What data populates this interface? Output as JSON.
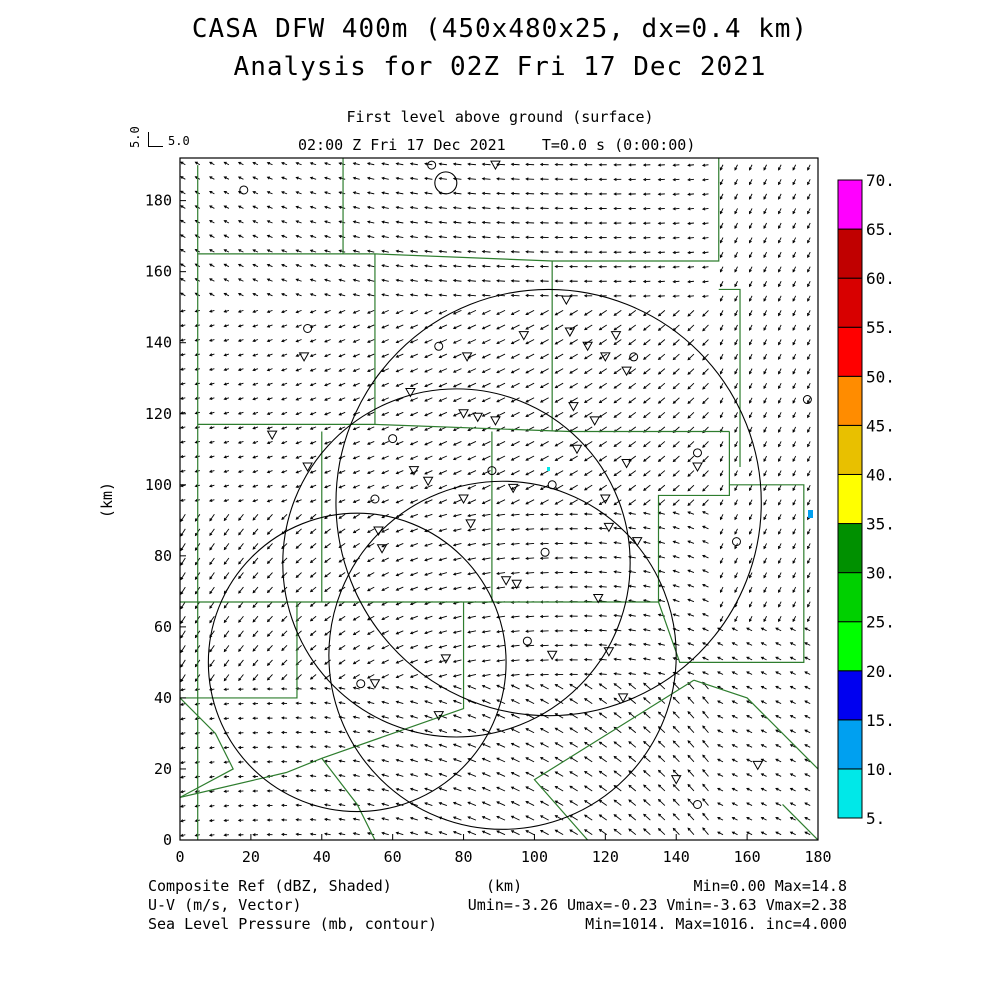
{
  "header": {
    "title_line1": "CASA DFW 400m (450x480x25, dx=0.4 km)",
    "title_line2": "Analysis for 02Z Fri 17 Dec 2021",
    "subtitle_line1": "First level above ground (surface)",
    "subtitle_line2": "02:00 Z Fri 17 Dec 2021    T=0.0 s (0:00:00)",
    "ref_vector_label": "5.0",
    "ref_vector_vertical_label": "5.0"
  },
  "footer": {
    "field1_name": "Composite Ref (dBZ, Shaded)",
    "field1_range": "Min=0.00 Max=14.8",
    "field2_name": "U-V (m/s, Vector)",
    "field2_range": "Umin=-3.26 Umax=-0.23 Vmin=-3.63 Vmax=2.38",
    "field3_name": "Sea Level Pressure (mb, contour)",
    "field3_range": "Min=1014. Max=1016. inc=4.000",
    "x_unit": "(km)"
  },
  "colors": {
    "county_lines": "#2e7d2e",
    "vectors": "#000000",
    "frame": "#000000"
  },
  "chart_data": {
    "type": "map",
    "xlabel": "(km)",
    "ylabel": "(km)",
    "xlim": [
      0,
      180
    ],
    "ylim": [
      0,
      192
    ],
    "xticks": [
      0,
      20,
      40,
      60,
      80,
      100,
      120,
      140,
      160,
      180
    ],
    "yticks": [
      0,
      20,
      40,
      60,
      80,
      100,
      120,
      140,
      160,
      180
    ],
    "colorbar": {
      "levels": [
        "5.",
        "10.",
        "15.",
        "20.",
        "25.",
        "30.",
        "35.",
        "40.",
        "45.",
        "50.",
        "55.",
        "60.",
        "65.",
        "70."
      ],
      "colors": [
        "#00e8e8",
        "#00a0f0",
        "#0000f0",
        "#00ff00",
        "#00d000",
        "#009000",
        "#ffff00",
        "#e8c000",
        "#ff8c00",
        "#ff0000",
        "#d80000",
        "#c00000",
        "#ff00ff"
      ]
    },
    "radar_rings": [
      {
        "cx": 104,
        "cy": 95,
        "r": 60
      },
      {
        "cx": 78,
        "cy": 78,
        "r": 49
      },
      {
        "cx": 91,
        "cy": 52,
        "r": 49
      },
      {
        "cx": 50,
        "cy": 50,
        "r": 42
      }
    ],
    "wind_field": {
      "u_range": [
        -3.26,
        -0.23
      ],
      "v_range": [
        -3.63,
        2.38
      ]
    },
    "station_markers_triangle": [
      [
        35,
        136
      ],
      [
        26,
        114
      ],
      [
        36,
        105
      ],
      [
        66,
        104
      ],
      [
        70,
        101
      ],
      [
        80,
        120
      ],
      [
        84,
        119
      ],
      [
        89,
        118
      ],
      [
        81,
        136
      ],
      [
        97,
        142
      ],
      [
        110,
        143
      ],
      [
        115,
        139
      ],
      [
        123,
        142
      ],
      [
        120,
        136
      ],
      [
        126,
        132
      ],
      [
        111,
        122
      ],
      [
        117,
        118
      ],
      [
        126,
        106
      ],
      [
        120,
        96
      ],
      [
        121,
        88
      ],
      [
        129,
        84
      ],
      [
        146,
        105
      ],
      [
        112,
        110
      ],
      [
        80,
        96
      ],
      [
        82,
        89
      ],
      [
        94,
        99
      ],
      [
        56,
        87
      ],
      [
        57,
        82
      ],
      [
        95,
        72
      ],
      [
        92,
        73
      ],
      [
        118,
        68
      ],
      [
        121,
        53
      ],
      [
        105,
        52
      ],
      [
        75,
        51
      ],
      [
        55,
        44
      ],
      [
        125,
        40
      ],
      [
        73,
        35
      ],
      [
        140,
        17
      ],
      [
        163,
        21
      ],
      [
        109,
        152
      ],
      [
        89,
        190
      ],
      [
        65,
        126
      ]
    ],
    "station_markers_circle": [
      [
        18,
        183
      ],
      [
        36,
        144
      ],
      [
        73,
        139
      ],
      [
        128,
        136
      ],
      [
        60,
        113
      ],
      [
        146,
        109
      ],
      [
        55,
        96
      ],
      [
        105,
        100
      ],
      [
        103,
        81
      ],
      [
        98,
        56
      ],
      [
        51,
        44
      ],
      [
        146,
        10
      ],
      [
        157,
        84
      ],
      [
        177,
        124
      ],
      [
        71,
        190
      ],
      [
        88,
        104
      ]
    ],
    "counties": [
      [
        [
          5,
          0
        ],
        [
          5,
          190
        ]
      ],
      [
        [
          5,
          165
        ],
        [
          55,
          165
        ],
        [
          105,
          163
        ],
        [
          152,
          163
        ],
        [
          152,
          192
        ]
      ],
      [
        [
          46,
          165
        ],
        [
          46,
          192
        ]
      ],
      [
        [
          55,
          165
        ],
        [
          55,
          117
        ]
      ],
      [
        [
          5,
          117
        ],
        [
          55,
          117
        ],
        [
          110,
          115
        ],
        [
          155,
          115
        ]
      ],
      [
        [
          40,
          115
        ],
        [
          40,
          67
        ]
      ],
      [
        [
          0,
          67
        ],
        [
          100,
          67
        ],
        [
          135,
          67
        ]
      ],
      [
        [
          105,
          163
        ],
        [
          105,
          115
        ]
      ],
      [
        [
          152,
          155
        ],
        [
          158,
          155
        ],
        [
          158,
          105
        ]
      ],
      [
        [
          155,
          115
        ],
        [
          155,
          97
        ],
        [
          135,
          97
        ],
        [
          135,
          67
        ]
      ],
      [
        [
          135,
          67
        ],
        [
          141,
          50
        ],
        [
          176,
          50
        ],
        [
          176,
          100
        ],
        [
          155,
          100
        ]
      ],
      [
        [
          88,
          115
        ],
        [
          88,
          67
        ]
      ],
      [
        [
          33,
          67
        ],
        [
          33,
          40
        ],
        [
          0,
          40
        ]
      ],
      [
        [
          80,
          67
        ],
        [
          80,
          37
        ],
        [
          40,
          23
        ],
        [
          30,
          19
        ],
        [
          0,
          12
        ]
      ],
      [
        [
          145,
          45
        ],
        [
          100,
          17
        ],
        [
          115,
          0
        ]
      ],
      [
        [
          145,
          45
        ],
        [
          160,
          40
        ],
        [
          170,
          30
        ],
        [
          180,
          20
        ]
      ],
      [
        [
          0,
          40
        ],
        [
          10,
          30
        ],
        [
          15,
          20
        ],
        [
          0,
          12
        ]
      ],
      [
        [
          40,
          23
        ],
        [
          50,
          10
        ],
        [
          55,
          0
        ]
      ],
      [
        [
          170,
          10
        ],
        [
          180,
          0
        ]
      ]
    ]
  }
}
